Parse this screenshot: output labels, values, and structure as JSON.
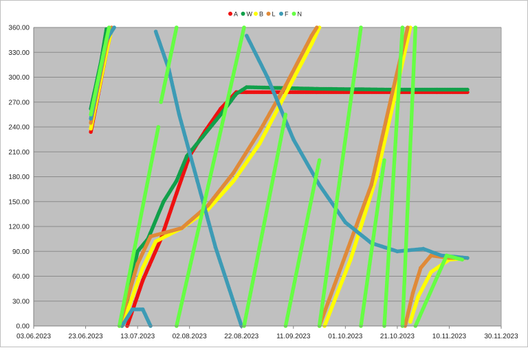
{
  "chart_data": {
    "type": "scatter",
    "xlim": [
      "03.06.2023",
      "30.11.2023"
    ],
    "ylim": [
      0,
      360
    ],
    "x_ticks": [
      "03.06.2023",
      "23.06.2023",
      "13.07.2023",
      "02.08.2023",
      "22.08.2023",
      "11.09.2023",
      "01.10.2023",
      "21.10.2023",
      "10.11.2023",
      "30.11.2023"
    ],
    "y_ticks": [
      "0.00",
      "30.00",
      "60.00",
      "90.00",
      "120.00",
      "150.00",
      "180.00",
      "210.00",
      "240.00",
      "270.00",
      "300.00",
      "330.00",
      "360.00"
    ],
    "grid": "horizontal",
    "legend_position": "top",
    "series": [
      {
        "name": "A",
        "color": "#ee1111",
        "segments": [
          [
            [
              "2023-06-25",
              234
            ],
            [
              "2023-07-01",
              330
            ],
            [
              "2023-07-03",
              358
            ]
          ],
          [
            [
              "2023-07-09",
              0
            ],
            [
              "2023-07-15",
              55
            ],
            [
              "2023-07-22",
              105
            ],
            [
              "2023-07-28",
              160
            ],
            [
              "2023-08-02",
              205
            ],
            [
              "2023-08-08",
              235
            ],
            [
              "2023-08-14",
              262
            ],
            [
              "2023-08-20",
              282
            ],
            [
              "2023-08-24",
              282
            ],
            [
              "2023-09-20",
              282
            ],
            [
              "2023-10-20",
              282
            ],
            [
              "2023-11-17",
              282
            ]
          ]
        ]
      },
      {
        "name": "W",
        "color": "#11a04a",
        "segments": [
          [
            [
              "2023-06-25",
              262
            ],
            [
              "2023-06-29",
              320
            ],
            [
              "2023-07-01",
              358
            ]
          ],
          [
            [
              "2023-07-07",
              0
            ],
            [
              "2023-07-13",
              90
            ],
            [
              "2023-07-17",
              105
            ],
            [
              "2023-07-23",
              150
            ],
            [
              "2023-07-28",
              175
            ],
            [
              "2023-08-01",
              205
            ],
            [
              "2023-08-07",
              228
            ],
            [
              "2023-08-14",
              255
            ],
            [
              "2023-08-20",
              280
            ],
            [
              "2023-08-24",
              288
            ],
            [
              "2023-09-20",
              286
            ],
            [
              "2023-10-20",
              285
            ],
            [
              "2023-11-17",
              285
            ]
          ]
        ]
      },
      {
        "name": "B",
        "color": "#ffff00",
        "segments": [
          [
            [
              "2023-06-25",
              238
            ],
            [
              "2023-07-01",
              330
            ],
            [
              "2023-07-03",
              358
            ]
          ],
          [
            [
              "2023-07-07",
              0
            ],
            [
              "2023-07-15",
              70
            ],
            [
              "2023-07-20",
              102
            ],
            [
              "2023-07-25",
              110
            ],
            [
              "2023-07-30",
              118
            ],
            [
              "2023-08-09",
              140
            ],
            [
              "2023-08-19",
              175
            ],
            [
              "2023-08-29",
              220
            ],
            [
              "2023-09-08",
              280
            ],
            [
              "2023-09-18",
              340
            ],
            [
              "2023-09-21",
              360
            ]
          ],
          [
            [
              "2023-09-23",
              0
            ],
            [
              "2023-10-03",
              80
            ],
            [
              "2023-10-13",
              180
            ],
            [
              "2023-10-21",
              290
            ],
            [
              "2023-10-26",
              360
            ]
          ],
          [
            [
              "2023-10-26",
              5
            ],
            [
              "2023-10-29",
              35
            ],
            [
              "2023-11-03",
              65
            ],
            [
              "2023-11-10",
              80
            ],
            [
              "2023-11-17",
              82
            ]
          ]
        ]
      },
      {
        "name": "L",
        "color": "#e08a38",
        "segments": [
          [
            [
              "2023-06-25",
              245
            ],
            [
              "2023-07-01",
              340
            ],
            [
              "2023-07-03",
              360
            ]
          ],
          [
            [
              "2023-07-06",
              0
            ],
            [
              "2023-07-13",
              75
            ],
            [
              "2023-07-18",
              108
            ],
            [
              "2023-07-24",
              113
            ],
            [
              "2023-07-30",
              118
            ],
            [
              "2023-08-09",
              145
            ],
            [
              "2023-08-19",
              185
            ],
            [
              "2023-08-29",
              235
            ],
            [
              "2023-09-08",
              290
            ],
            [
              "2023-09-18",
              350
            ],
            [
              "2023-09-20",
              360
            ]
          ],
          [
            [
              "2023-09-21",
              0
            ],
            [
              "2023-10-01",
              85
            ],
            [
              "2023-10-11",
              170
            ],
            [
              "2023-10-19",
              280
            ],
            [
              "2023-10-25",
              360
            ]
          ],
          [
            [
              "2023-10-24",
              0
            ],
            [
              "2023-10-27",
              40
            ],
            [
              "2023-10-30",
              70
            ],
            [
              "2023-11-03",
              85
            ],
            [
              "2023-11-10",
              82
            ],
            [
              "2023-11-17",
              82
            ]
          ]
        ]
      },
      {
        "name": "F",
        "color": "#3d9bb5",
        "segments": [
          [
            [
              "2023-06-25",
              250
            ],
            [
              "2023-07-01",
              345
            ],
            [
              "2023-07-04",
              360
            ]
          ],
          [
            [
              "2023-07-07",
              0
            ],
            [
              "2023-07-11",
              20
            ],
            [
              "2023-07-15",
              20
            ],
            [
              "2023-07-18",
              0
            ]
          ],
          [
            [
              "2023-07-20",
              355
            ],
            [
              "2023-07-25",
              310
            ],
            [
              "2023-07-29",
              255
            ],
            [
              "2023-08-05",
              175
            ],
            [
              "2023-08-12",
              95
            ],
            [
              "2023-08-22",
              0
            ]
          ],
          [
            [
              "2023-08-24",
              350
            ],
            [
              "2023-09-01",
              300
            ],
            [
              "2023-09-11",
              225
            ],
            [
              "2023-09-21",
              170
            ],
            [
              "2023-10-01",
              125
            ],
            [
              "2023-10-11",
              100
            ],
            [
              "2023-10-21",
              90
            ],
            [
              "2023-10-31",
              93
            ],
            [
              "2023-11-07",
              85
            ],
            [
              "2023-11-17",
              82
            ]
          ]
        ]
      },
      {
        "name": "N",
        "color": "#66ff44",
        "segments": [
          [
            [
              "2023-06-25",
              255
            ],
            [
              "2023-07-02",
              360
            ]
          ],
          [
            [
              "2023-07-06",
              0
            ],
            [
              "2023-07-21",
              240
            ]
          ],
          [
            [
              "2023-07-22",
              270
            ],
            [
              "2023-07-28",
              360
            ]
          ],
          [
            [
              "2023-07-28",
              0
            ],
            [
              "2023-08-23",
              360
            ]
          ],
          [
            [
              "2023-08-23",
              0
            ],
            [
              "2023-09-08",
              255
            ]
          ],
          [
            [
              "2023-09-08",
              0
            ],
            [
              "2023-09-21",
              200
            ]
          ],
          [
            [
              "2023-09-21",
              0
            ],
            [
              "2023-10-07",
              360
            ]
          ],
          [
            [
              "2023-10-07",
              0
            ],
            [
              "2023-10-16",
              200
            ]
          ],
          [
            [
              "2023-10-16",
              0
            ],
            [
              "2023-10-23",
              360
            ]
          ],
          [
            [
              "2023-10-23",
              0
            ],
            [
              "2023-10-28",
              360
            ]
          ],
          [
            [
              "2023-10-28",
              0
            ],
            [
              "2023-11-09",
              85
            ],
            [
              "2023-11-15",
              80
            ]
          ]
        ]
      }
    ]
  }
}
